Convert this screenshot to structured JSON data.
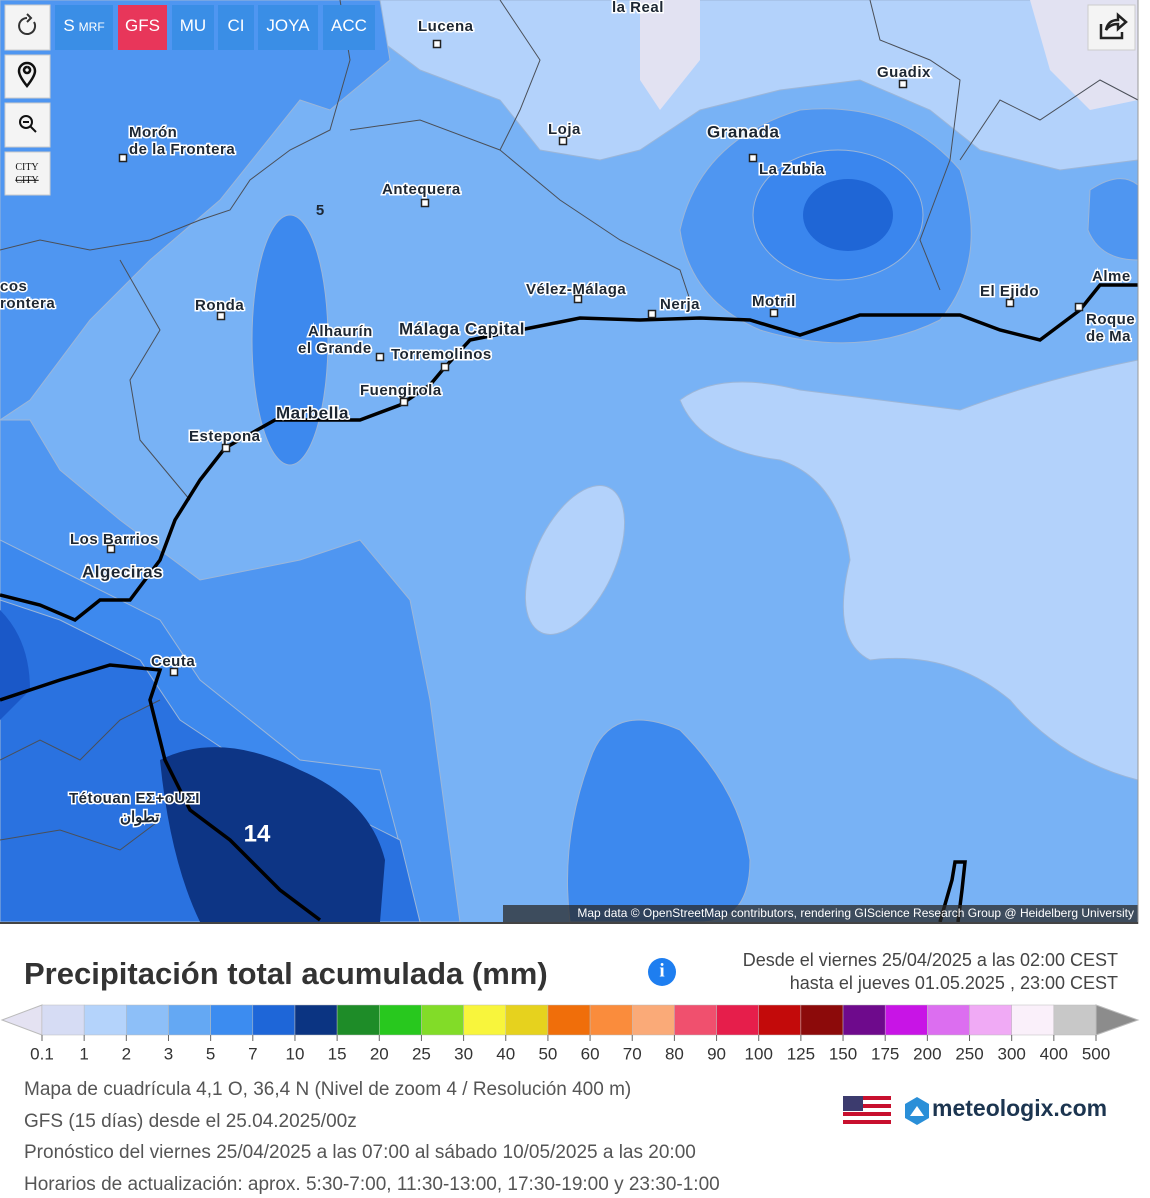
{
  "toolbar": {
    "buttons": [
      {
        "label": "S",
        "sub": "MRF"
      },
      {
        "label": "GFS"
      },
      {
        "label": "MU"
      },
      {
        "label": "CI"
      },
      {
        "label": "JOYA"
      },
      {
        "label": "ACC"
      }
    ],
    "city_toggle": [
      "CITY",
      "CITY"
    ]
  },
  "map": {
    "places": [
      {
        "lines": [
          "la Real"
        ]
      },
      {
        "lines": [
          "Lucena"
        ]
      },
      {
        "lines": [
          "Guadix"
        ]
      },
      {
        "lines": [
          "Loja"
        ]
      },
      {
        "lines": [
          "Granada"
        ]
      },
      {
        "lines": [
          "La Zubia"
        ]
      },
      {
        "lines": [
          "Morón",
          "de la Frontera"
        ]
      },
      {
        "lines": [
          "Antequera"
        ]
      },
      {
        "lines": [
          "Ronda"
        ]
      },
      {
        "lines": [
          "Vélez-Málaga"
        ]
      },
      {
        "lines": [
          "Nerja"
        ]
      },
      {
        "lines": [
          "Motril"
        ]
      },
      {
        "lines": [
          "El Ejido"
        ]
      },
      {
        "lines": [
          "Alhaurín",
          "el Grande"
        ]
      },
      {
        "lines": [
          "Málaga Capital"
        ]
      },
      {
        "lines": [
          "Torremolinos"
        ]
      },
      {
        "lines": [
          "Fuengirola"
        ]
      },
      {
        "lines": [
          "Marbella"
        ]
      },
      {
        "lines": [
          "Estepona"
        ]
      },
      {
        "lines": [
          "Los Barrios"
        ]
      },
      {
        "lines": [
          "Algeciras"
        ]
      },
      {
        "lines": [
          "Ceuta"
        ]
      },
      {
        "lines": [
          "Alme"
        ]
      },
      {
        "lines": [
          "Roque",
          "de Ma"
        ]
      },
      {
        "lines": [
          "Tétouan ΕΣ+οUΣI"
        ]
      },
      {
        "lines": [
          "تطوان"
        ]
      },
      {
        "lines": [
          "cos",
          "rontera"
        ]
      }
    ],
    "contour_labels": [
      5,
      14
    ],
    "attribution": "Map data © OpenStreetMap contributors, rendering GIScience Research Group @ Heidelberg University"
  },
  "info": {
    "title": "Precipitación total acumulada (mm)",
    "range": [
      "Desde el viernes 25/04/2025 a  las 02:00  CEST",
      "hasta el jueves 01.05.2025 ,  23:00  CEST"
    ]
  },
  "legend": {
    "labels": [
      0.1,
      1,
      2,
      3,
      5,
      7,
      10,
      15,
      20,
      25,
      30,
      40,
      50,
      60,
      70,
      80,
      90,
      100,
      125,
      150,
      175,
      200,
      250,
      300,
      400,
      500
    ],
    "colors": [
      "#d6dcf4",
      "#b4d3fb",
      "#8dbff8",
      "#64a8f3",
      "#3c8cf0",
      "#1e66d8",
      "#0b3482",
      "#1e8c28",
      "#28c81e",
      "#82dc28",
      "#f8f53c",
      "#e6d21e",
      "#f06e0a",
      "#fa8c3c",
      "#faaa78",
      "#f0506e",
      "#e61e4b",
      "#c30a0a",
      "#8c0a0a",
      "#6e0a8c",
      "#c814e6",
      "#dc6ef0",
      "#f0aaf5",
      "#faf0fa",
      "#c8c8c8"
    ],
    "under_color": "#e4e2f2",
    "over_color": "#8c8c8c"
  },
  "footer": {
    "lines": [
      "Mapa de cuadrícula 4,1 O, 36,4 N (Nivel de zoom 4 / Resolución 400 m)",
      "GFS (15 días) desde el 25.04.2025/00z",
      "Pronóstico del viernes 25/04/2025 a las 07:00 al sábado 10/05/2025 a las 20:00",
      "Horarios de actualización: aprox. 5:30-7:00, 11:30-13:00, 17:30-19:00 y 23:30-1:00"
    ],
    "brand": "meteologix.com"
  }
}
